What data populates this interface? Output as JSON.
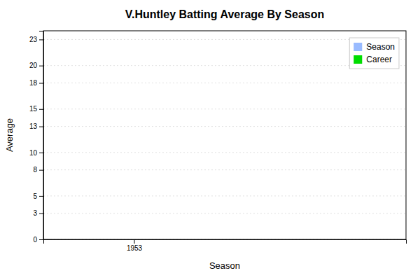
{
  "chart_data": {
    "type": "bar",
    "title": "V.Huntley Batting Average By Season",
    "xlabel": "Season",
    "ylabel": "Average",
    "x": [],
    "series": [
      {
        "name": "Season",
        "color": "#99bbff",
        "values": []
      },
      {
        "name": "Career",
        "color": "#00dd00",
        "values": []
      }
    ],
    "xlim": [
      1952.5,
      1954.5
    ],
    "xticks": [
      1953
    ],
    "ylim": [
      0,
      24
    ],
    "yticks": [
      0,
      3,
      5,
      8,
      10,
      13,
      15,
      18,
      20,
      23
    ],
    "grid": true,
    "legend": "upper right"
  }
}
